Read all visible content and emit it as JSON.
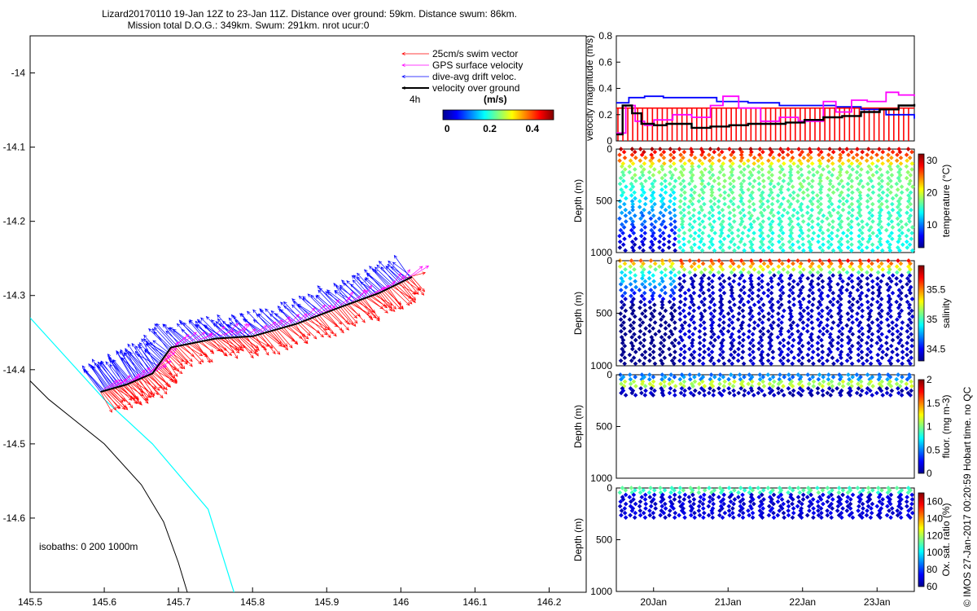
{
  "title": {
    "line1": "Lizard20170110 19-Jan 12Z to 23-Jan 11Z. Distance over ground: 59km. Distance swum: 86km.",
    "line2": "Mission total D.O.G.: 349km. Swum: 291km. nrot ucur:0"
  },
  "colors": {
    "swim": "#ff0000",
    "gps": "#ff00ff",
    "drift": "#0000ff",
    "ground": "#000000",
    "coast_deep": "#00ffff"
  },
  "chart_data": [
    {
      "type": "map",
      "name": "track-map",
      "xlim": [
        145.5,
        146.25
      ],
      "ylim": [
        -14.7,
        -13.95
      ],
      "xticks": [
        "145.5",
        "145.6",
        "145.7",
        "145.8",
        "145.9",
        "146",
        "146.1",
        "146.2"
      ],
      "xtick_values": [
        145.5,
        145.6,
        145.7,
        145.8,
        145.9,
        146.0,
        146.1,
        146.2
      ],
      "yticks": [
        "-14",
        "-14.1",
        "-14.2",
        "-14.3",
        "-14.4",
        "-14.5",
        "-14.6"
      ],
      "ytick_values": [
        -14.0,
        -14.1,
        -14.2,
        -14.3,
        -14.4,
        -14.5,
        -14.6
      ],
      "legend": [
        {
          "label": "25cm/s swim vector",
          "color": "#ff0000"
        },
        {
          "label": "GPS surface velocity",
          "color": "#ff00ff"
        },
        {
          "label": "dive-avg drift veloc.",
          "color": "#0000ff"
        },
        {
          "label": "velocity over ground",
          "color": "#000000"
        }
      ],
      "legend_time_note": "4h",
      "colorbar": {
        "label": "(m/s)",
        "ticks": [
          "0",
          "0.2",
          "0.4"
        ],
        "tick_values": [
          0,
          0.2,
          0.4
        ],
        "range": [
          -0.02,
          0.5
        ]
      },
      "isobaths_label": "isobaths: 0   200  1000m",
      "track": [
        {
          "lon": 145.595,
          "lat": -14.43
        },
        {
          "lon": 145.63,
          "lat": -14.42
        },
        {
          "lon": 145.665,
          "lat": -14.405
        },
        {
          "lon": 145.69,
          "lat": -14.37
        },
        {
          "lon": 145.75,
          "lat": -14.358
        },
        {
          "lon": 145.8,
          "lat": -14.355
        },
        {
          "lon": 145.86,
          "lat": -14.338
        },
        {
          "lon": 145.92,
          "lat": -14.315
        },
        {
          "lon": 145.97,
          "lat": -14.297
        },
        {
          "lon": 146.015,
          "lat": -14.275
        }
      ],
      "isobath_0": [
        {
          "lon": 145.5,
          "lat": -14.415
        },
        {
          "lon": 145.525,
          "lat": -14.44
        },
        {
          "lon": 145.6,
          "lat": -14.5
        },
        {
          "lon": 145.65,
          "lat": -14.555
        },
        {
          "lon": 145.68,
          "lat": -14.605
        },
        {
          "lon": 145.7,
          "lat": -14.66
        },
        {
          "lon": 145.712,
          "lat": -14.7
        }
      ],
      "isobath_1000": [
        {
          "lon": 145.5,
          "lat": -14.33
        },
        {
          "lon": 145.6,
          "lat": -14.44
        },
        {
          "lon": 145.665,
          "lat": -14.5
        },
        {
          "lon": 145.74,
          "lat": -14.588
        },
        {
          "lon": 145.775,
          "lat": -14.7
        }
      ]
    },
    {
      "type": "line",
      "name": "velocity-magnitude",
      "ylabel": "velocity magnitude (m/s)",
      "ylim": [
        0,
        0.8
      ],
      "yticks": [
        "0",
        "0.2",
        "0.4",
        "0.6",
        "0.8"
      ],
      "ytick_values": [
        0,
        0.2,
        0.4,
        0.6,
        0.8
      ],
      "xlim": [
        0,
        4.75
      ],
      "series": [
        {
          "name": "dive-avg drift veloc.",
          "color": "#0000ff",
          "x": [
            0,
            0.2,
            0.45,
            0.75,
            1.2,
            1.6,
            2.1,
            2.6,
            3.1,
            3.5,
            3.9,
            4.3,
            4.75
          ],
          "values": [
            0.29,
            0.33,
            0.34,
            0.33,
            0.33,
            0.3,
            0.29,
            0.27,
            0.27,
            0.26,
            0.24,
            0.2,
            0.17
          ]
        },
        {
          "name": "GPS surface velocity",
          "color": "#ff00ff",
          "x": [
            0,
            0.15,
            0.3,
            0.45,
            0.6,
            0.9,
            1.2,
            1.5,
            1.7,
            1.95,
            2.3,
            2.6,
            2.9,
            3.3,
            3.5,
            3.75,
            4.0,
            4.3,
            4.5,
            4.75
          ],
          "values": [
            0.06,
            0.27,
            0.15,
            0.12,
            0.16,
            0.2,
            0.18,
            0.27,
            0.34,
            0.25,
            0.15,
            0.18,
            0.15,
            0.3,
            0.22,
            0.31,
            0.3,
            0.37,
            0.35,
            0.34
          ]
        },
        {
          "name": "velocity over ground",
          "color": "#000000",
          "x": [
            0,
            0.1,
            0.25,
            0.4,
            0.6,
            0.8,
            1.0,
            1.2,
            1.5,
            1.8,
            2.1,
            2.4,
            2.7,
            3.0,
            3.3,
            3.6,
            3.9,
            4.2,
            4.5,
            4.75
          ],
          "values": [
            0.05,
            0.27,
            0.21,
            0.13,
            0.12,
            0.13,
            0.13,
            0.1,
            0.11,
            0.12,
            0.13,
            0.13,
            0.14,
            0.16,
            0.18,
            0.19,
            0.22,
            0.24,
            0.27,
            0.28
          ]
        },
        {
          "name": "25cm/s swim vector",
          "color": "#ff0000",
          "x": [
            0,
            4.75
          ],
          "values": [
            0.25,
            0.25
          ]
        }
      ]
    },
    {
      "type": "scatter",
      "name": "temperature-section",
      "ylabel": "Depth (m)",
      "ylim": [
        0,
        1000
      ],
      "yticks": [
        "0",
        "500",
        "1000"
      ],
      "ytick_values": [
        0,
        500,
        1000
      ],
      "colorbar": {
        "label": "temperature (°C)",
        "ticks": [
          "10",
          "20",
          "30"
        ],
        "tick_values": [
          10,
          20,
          30
        ],
        "range": [
          3,
          32
        ]
      },
      "profile_depth": [
        0,
        1000
      ]
    },
    {
      "type": "scatter",
      "name": "salinity-section",
      "ylabel": "Depth (m)",
      "ylim": [
        0,
        1000
      ],
      "yticks": [
        "0",
        "500",
        "1000"
      ],
      "ytick_values": [
        0,
        500,
        1000
      ],
      "colorbar": {
        "label": "salinity",
        "ticks": [
          "34.5",
          "35",
          "35.5"
        ],
        "tick_values": [
          34.5,
          35,
          35.5
        ],
        "range": [
          34.3,
          35.9
        ]
      },
      "profile_depth": [
        0,
        1000
      ]
    },
    {
      "type": "scatter",
      "name": "fluorescence-section",
      "ylabel": "Depth (m)",
      "ylim": [
        0,
        1000
      ],
      "yticks": [
        "0",
        "500",
        "1000"
      ],
      "ytick_values": [
        0,
        500,
        1000
      ],
      "colorbar": {
        "label": "fluor. (mg m-3)",
        "ticks": [
          "0",
          "0.5",
          "1",
          "1.5",
          "2"
        ],
        "tick_values": [
          0,
          0.5,
          1,
          1.5,
          2
        ],
        "range": [
          0,
          2
        ]
      },
      "profile_depth": [
        0,
        200
      ]
    },
    {
      "type": "scatter",
      "name": "oxygen-section",
      "ylabel": "Depth (m)",
      "ylim": [
        0,
        1000
      ],
      "yticks": [
        "0",
        "500",
        "1000"
      ],
      "ytick_values": [
        0,
        500,
        1000
      ],
      "colorbar": {
        "label": "Ox. sat. ratio (%)",
        "ticks": [
          "60",
          "80",
          "100",
          "120",
          "140",
          "160"
        ],
        "tick_values": [
          60,
          80,
          100,
          120,
          140,
          160
        ],
        "range": [
          60,
          170
        ]
      },
      "profile_depth": [
        0,
        300
      ]
    }
  ],
  "time_axis": {
    "ticks": [
      "20Jan",
      "21Jan",
      "22Jan",
      "23Jan"
    ],
    "tick_values": [
      0.5,
      1.5,
      2.5,
      3.5
    ],
    "range_days": [
      0,
      4.0
    ]
  },
  "side_note": "© IMOS 27-Jan-2017 00:20:59 Hobart time. no QC"
}
